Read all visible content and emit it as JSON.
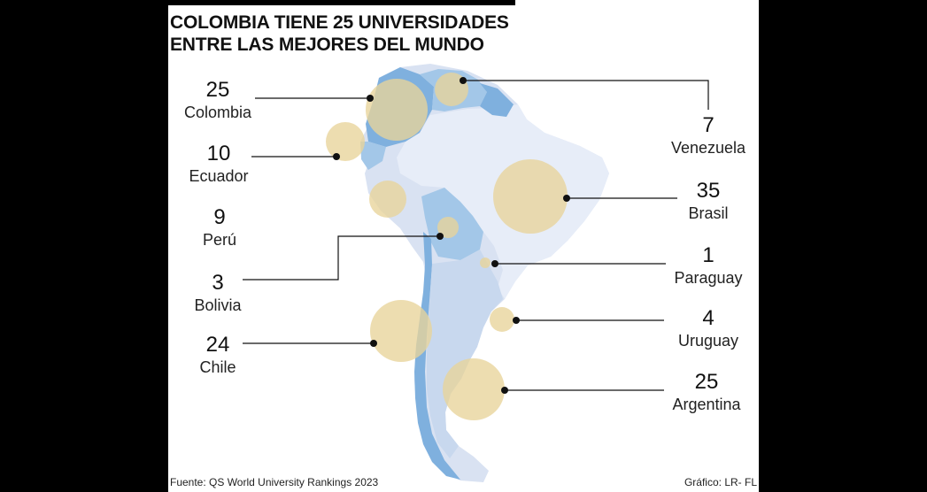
{
  "title": {
    "line1": "COLOMBIA TIENE 25 UNIVERSIDADES",
    "line2": "ENTRE LAS MEJORES DEL MUNDO"
  },
  "colors": {
    "land": "#d9e2f2",
    "highlight": "#7fb0de",
    "bubble": "#e8d49a",
    "bubble_opacity": 0.78,
    "leader": "#111111"
  },
  "countries": {
    "colombia": {
      "name": "Colombia",
      "value": 25
    },
    "ecuador": {
      "name": "Ecuador",
      "value": 10
    },
    "peru": {
      "name": "Perú",
      "value": 9
    },
    "bolivia": {
      "name": "Bolivia",
      "value": 3
    },
    "chile": {
      "name": "Chile",
      "value": 24
    },
    "venezuela": {
      "name": "Venezuela",
      "value": 7
    },
    "brasil": {
      "name": "Brasil",
      "value": 35
    },
    "paraguay": {
      "name": "Paraguay",
      "value": 1
    },
    "uruguay": {
      "name": "Uruguay",
      "value": 4
    },
    "argentina": {
      "name": "Argentina",
      "value": 25
    }
  },
  "footer": {
    "source": "Fuente: QS World University Rankings 2023",
    "credit": "Gráfico: LR- FL"
  }
}
